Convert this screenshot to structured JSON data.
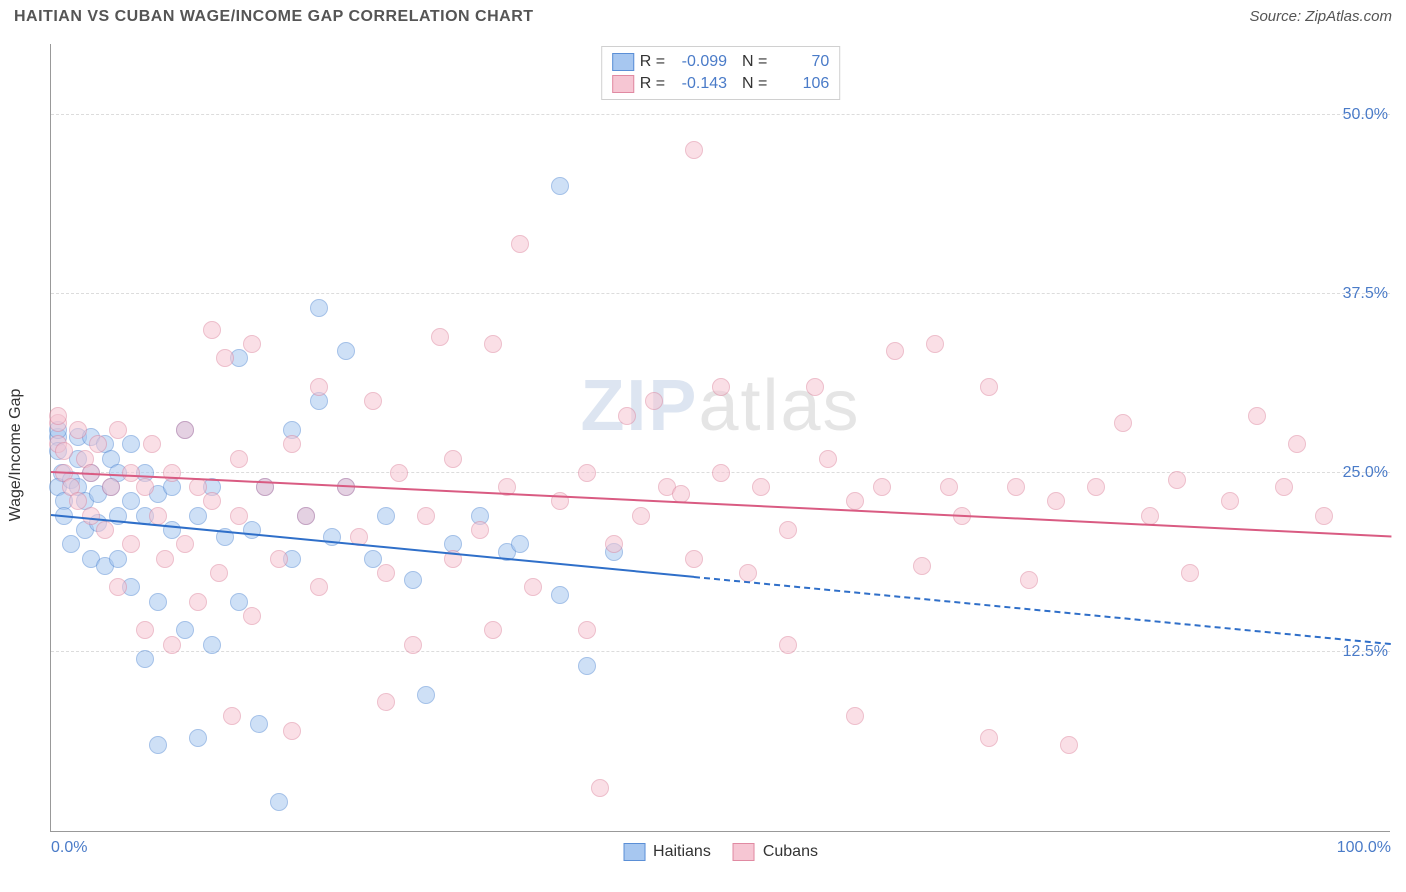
{
  "title": "HAITIAN VS CUBAN WAGE/INCOME GAP CORRELATION CHART",
  "source": "Source: ZipAtlas.com",
  "y_axis_title": "Wage/Income Gap",
  "watermark_prefix": "ZIP",
  "watermark_suffix": "atlas",
  "chart": {
    "type": "scatter",
    "xlim": [
      0,
      100
    ],
    "ylim": [
      0,
      55
    ],
    "x_ticks": [
      {
        "v": 0,
        "label": "0.0%"
      },
      {
        "v": 100,
        "label": "100.0%"
      }
    ],
    "y_ticks": [
      {
        "v": 12.5,
        "label": "12.5%"
      },
      {
        "v": 25.0,
        "label": "25.0%"
      },
      {
        "v": 37.5,
        "label": "37.5%"
      },
      {
        "v": 50.0,
        "label": "50.0%"
      }
    ],
    "grid_color": "#dcdcdc",
    "background_color": "#ffffff",
    "point_radius": 9,
    "point_opacity": 0.55,
    "series": [
      {
        "name": "Haitians",
        "fill_color": "#a7c7f0",
        "stroke_color": "#5b8fd6",
        "R": "-0.099",
        "N": "70",
        "trend": {
          "x0": 0,
          "y0": 22.0,
          "x1": 100,
          "y1": 13.0,
          "solid_until_x": 48,
          "color": "#2f6fc9",
          "width": 2.5
        },
        "points": [
          [
            0.5,
            27.5
          ],
          [
            0.5,
            26.5
          ],
          [
            0.8,
            25.0
          ],
          [
            0.5,
            24.0
          ],
          [
            0.5,
            28.0
          ],
          [
            1.0,
            23.0
          ],
          [
            1.5,
            24.5
          ],
          [
            1.0,
            22.0
          ],
          [
            1.5,
            20.0
          ],
          [
            2.0,
            26.0
          ],
          [
            2.0,
            27.5
          ],
          [
            2.0,
            24.0
          ],
          [
            2.5,
            23.0
          ],
          [
            2.5,
            21.0
          ],
          [
            3.0,
            27.5
          ],
          [
            3.0,
            19.0
          ],
          [
            3.0,
            25.0
          ],
          [
            3.5,
            23.5
          ],
          [
            3.5,
            21.5
          ],
          [
            4.0,
            27.0
          ],
          [
            4.0,
            18.5
          ],
          [
            4.5,
            26.0
          ],
          [
            4.5,
            24.0
          ],
          [
            5.0,
            22.0
          ],
          [
            5.0,
            19.0
          ],
          [
            5.0,
            25.0
          ],
          [
            6.0,
            23.0
          ],
          [
            6.0,
            17.0
          ],
          [
            6.0,
            27.0
          ],
          [
            7.0,
            22.0
          ],
          [
            7.0,
            12.0
          ],
          [
            7.0,
            25.0
          ],
          [
            8.0,
            16.0
          ],
          [
            8.0,
            23.5
          ],
          [
            8.0,
            6.0
          ],
          [
            9.0,
            21.0
          ],
          [
            9.0,
            24.0
          ],
          [
            10.0,
            14.0
          ],
          [
            10.0,
            28.0
          ],
          [
            11.0,
            22.0
          ],
          [
            11.0,
            6.5
          ],
          [
            12.0,
            13.0
          ],
          [
            12.0,
            24.0
          ],
          [
            13.0,
            20.5
          ],
          [
            14.0,
            16.0
          ],
          [
            14.0,
            33.0
          ],
          [
            15.0,
            21.0
          ],
          [
            15.5,
            7.5
          ],
          [
            16.0,
            24.0
          ],
          [
            17.0,
            2.0
          ],
          [
            18.0,
            19.0
          ],
          [
            18.0,
            28.0
          ],
          [
            19.0,
            22.0
          ],
          [
            20.0,
            36.5
          ],
          [
            20.0,
            30.0
          ],
          [
            21.0,
            20.5
          ],
          [
            22.0,
            33.5
          ],
          [
            22.0,
            24.0
          ],
          [
            24.0,
            19.0
          ],
          [
            25.0,
            22.0
          ],
          [
            27.0,
            17.5
          ],
          [
            28.0,
            9.5
          ],
          [
            30.0,
            20.0
          ],
          [
            32.0,
            22.0
          ],
          [
            34.0,
            19.5
          ],
          [
            35.0,
            20.0
          ],
          [
            38.0,
            16.5
          ],
          [
            38.0,
            45.0
          ],
          [
            40.0,
            11.5
          ],
          [
            42.0,
            19.5
          ]
        ]
      },
      {
        "name": "Cubans",
        "fill_color": "#f6c6d3",
        "stroke_color": "#e08aa2",
        "R": "-0.143",
        "N": "106",
        "trend": {
          "x0": 0,
          "y0": 25.0,
          "x1": 100,
          "y1": 20.5,
          "solid_until_x": 100,
          "color": "#d95b82",
          "width": 2.5
        },
        "points": [
          [
            0.5,
            28.5
          ],
          [
            0.5,
            27.0
          ],
          [
            0.5,
            29.0
          ],
          [
            1.0,
            25.0
          ],
          [
            1.0,
            26.5
          ],
          [
            1.5,
            24.0
          ],
          [
            2.0,
            28.0
          ],
          [
            2.0,
            23.0
          ],
          [
            2.5,
            26.0
          ],
          [
            3.0,
            25.0
          ],
          [
            3.0,
            22.0
          ],
          [
            3.5,
            27.0
          ],
          [
            4.0,
            21.0
          ],
          [
            4.5,
            24.0
          ],
          [
            5.0,
            28.0
          ],
          [
            5.0,
            17.0
          ],
          [
            6.0,
            25.0
          ],
          [
            6.0,
            20.0
          ],
          [
            7.0,
            14.0
          ],
          [
            7.0,
            24.0
          ],
          [
            7.5,
            27.0
          ],
          [
            8.0,
            22.0
          ],
          [
            8.5,
            19.0
          ],
          [
            9.0,
            13.0
          ],
          [
            9.0,
            25.0
          ],
          [
            10.0,
            28.0
          ],
          [
            10.0,
            20.0
          ],
          [
            11.0,
            16.0
          ],
          [
            11.0,
            24.0
          ],
          [
            12.0,
            23.0
          ],
          [
            12.0,
            35.0
          ],
          [
            12.5,
            18.0
          ],
          [
            13.0,
            33.0
          ],
          [
            14.0,
            22.0
          ],
          [
            14.0,
            26.0
          ],
          [
            15.0,
            15.0
          ],
          [
            15.0,
            34.0
          ],
          [
            16.0,
            24.0
          ],
          [
            17.0,
            19.0
          ],
          [
            18.0,
            27.0
          ],
          [
            19.0,
            22.0
          ],
          [
            20.0,
            31.0
          ],
          [
            20.0,
            17.0
          ],
          [
            22.0,
            24.0
          ],
          [
            23.0,
            20.5
          ],
          [
            24.0,
            30.0
          ],
          [
            25.0,
            18.0
          ],
          [
            26.0,
            25.0
          ],
          [
            27.0,
            13.0
          ],
          [
            28.0,
            22.0
          ],
          [
            29.0,
            34.5
          ],
          [
            30.0,
            19.0
          ],
          [
            30.0,
            26.0
          ],
          [
            32.0,
            21.0
          ],
          [
            33.0,
            34.0
          ],
          [
            34.0,
            24.0
          ],
          [
            35.0,
            41.0
          ],
          [
            36.0,
            17.0
          ],
          [
            38.0,
            23.0
          ],
          [
            40.0,
            25.0
          ],
          [
            41.0,
            3.0
          ],
          [
            42.0,
            20.0
          ],
          [
            43.0,
            29.0
          ],
          [
            44.0,
            22.0
          ],
          [
            45.0,
            30.0
          ],
          [
            46.0,
            24.0
          ],
          [
            47.0,
            23.5
          ],
          [
            48.0,
            19.0
          ],
          [
            48.0,
            47.5
          ],
          [
            50.0,
            25.0
          ],
          [
            50.0,
            31.0
          ],
          [
            52.0,
            18.0
          ],
          [
            53.0,
            24.0
          ],
          [
            55.0,
            21.0
          ],
          [
            57.0,
            31.0
          ],
          [
            58.0,
            26.0
          ],
          [
            60.0,
            23.0
          ],
          [
            60.0,
            8.0
          ],
          [
            62.0,
            24.0
          ],
          [
            63.0,
            33.5
          ],
          [
            65.0,
            18.5
          ],
          [
            66.0,
            34.0
          ],
          [
            67.0,
            24.0
          ],
          [
            68.0,
            22.0
          ],
          [
            70.0,
            31.0
          ],
          [
            70.0,
            6.5
          ],
          [
            72.0,
            24.0
          ],
          [
            73.0,
            17.5
          ],
          [
            75.0,
            23.0
          ],
          [
            76.0,
            6.0
          ],
          [
            78.0,
            24.0
          ],
          [
            80.0,
            28.5
          ],
          [
            82.0,
            22.0
          ],
          [
            84.0,
            24.5
          ],
          [
            85.0,
            18.0
          ],
          [
            88.0,
            23.0
          ],
          [
            90.0,
            29.0
          ],
          [
            92.0,
            24.0
          ],
          [
            93.0,
            27.0
          ],
          [
            95.0,
            22.0
          ],
          [
            13.5,
            8.0
          ],
          [
            18.0,
            7.0
          ],
          [
            25.0,
            9.0
          ],
          [
            33.0,
            14.0
          ],
          [
            40.0,
            14.0
          ],
          [
            55.0,
            13.0
          ]
        ]
      }
    ]
  },
  "tick_label_color": "#4a7bc8"
}
